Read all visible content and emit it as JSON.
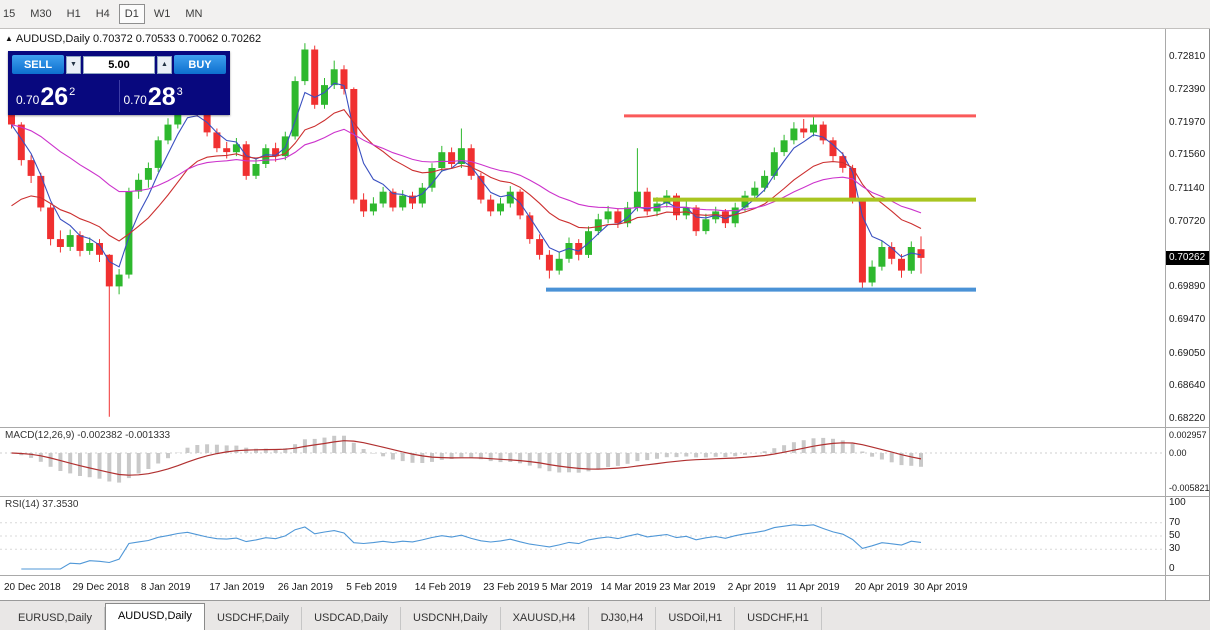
{
  "toolbar": {
    "timeframes": [
      "15",
      "M30",
      "H1",
      "H4",
      "D1",
      "W1",
      "MN"
    ],
    "active": "D1"
  },
  "header": {
    "icon": "▲",
    "symbol": "AUDUSD,Daily",
    "ohlc": "0.70372 0.70533 0.70062 0.70262"
  },
  "trade_panel": {
    "sell_label": "SELL",
    "buy_label": "BUY",
    "volume": "5.00",
    "volume_down_icon": "▼",
    "volume_up_icon": "▲",
    "sell_price": {
      "base": "0.70",
      "pips": "26",
      "point": "2"
    },
    "buy_price": {
      "base": "0.70",
      "pips": "28",
      "point": "3"
    }
  },
  "tab_bar": {
    "tabs": [
      "EURUSD,Daily",
      "AUDUSD,Daily",
      "USDCHF,Daily",
      "USDCAD,Daily",
      "USDCNH,Daily",
      "XAUUSD,H4",
      "DJ30,H4",
      "USDOil,H1",
      "USDCHF,H1"
    ],
    "active": "AUDUSD,Daily"
  },
  "chart_data": {
    "main": {
      "type": "candlestick",
      "symbol": "AUDUSD,Daily",
      "ylim": [
        0.6812,
        0.7316
      ],
      "y_ticks": [
        "0.72810",
        "0.72390",
        "0.71970",
        "0.71560",
        "0.71140",
        "0.70720",
        "0.69890",
        "0.69470",
        "0.69050",
        "0.68640",
        "0.68220"
      ],
      "current_price": "0.70262",
      "colors": {
        "bull": "#2eb82e",
        "bear": "#f03030"
      },
      "x_ticks": [
        {
          "label": "20 Dec 2018",
          "i": 0
        },
        {
          "label": "29 Dec 2018",
          "i": 7
        },
        {
          "label": "8 Jan 2019",
          "i": 14
        },
        {
          "label": "17 Jan 2019",
          "i": 21
        },
        {
          "label": "26 Jan 2019",
          "i": 28
        },
        {
          "label": "5 Feb 2019",
          "i": 35
        },
        {
          "label": "14 Feb 2019",
          "i": 42
        },
        {
          "label": "23 Feb 2019",
          "i": 49
        },
        {
          "label": "5 Mar 2019",
          "i": 55
        },
        {
          "label": "14 Mar 2019",
          "i": 61
        },
        {
          "label": "23 Mar 2019",
          "i": 67
        },
        {
          "label": "2 Apr 2019",
          "i": 74
        },
        {
          "label": "11 Apr 2019",
          "i": 80
        },
        {
          "label": "20 Apr 2019",
          "i": 87
        },
        {
          "label": "30 Apr 2019",
          "i": 93
        }
      ],
      "indicators": [
        {
          "name": "ma-fast-blue",
          "type": "ema",
          "period": 4,
          "seed": null,
          "color": "#3a50c0"
        },
        {
          "name": "ma-mid-red",
          "type": "ema",
          "period": 13,
          "seed": 0.7075,
          "color": "#cc2f2f"
        },
        {
          "name": "ma-slow-magenta",
          "type": "ema",
          "period": 26,
          "seed": 0.7195,
          "color": "#cc33cc"
        }
      ],
      "hlines": [
        {
          "name": "upper-resistance",
          "price": 0.7206,
          "i0": 63,
          "i1": 99,
          "color": "#fa5a5a",
          "width": 3
        },
        {
          "name": "mid-resistance",
          "price": 0.71,
          "i0": 66,
          "i1": 99,
          "color": "#a9c520",
          "width": 4
        },
        {
          "name": "lower-support",
          "price": 0.6986,
          "i0": 55,
          "i1": 99,
          "color": "#4a92d6",
          "width": 4
        }
      ],
      "candles": [
        [
          0.721,
          0.7218,
          0.719,
          0.7195
        ],
        [
          0.7195,
          0.7198,
          0.7143,
          0.715
        ],
        [
          0.715,
          0.7156,
          0.7121,
          0.713
        ],
        [
          0.713,
          0.7134,
          0.7085,
          0.709
        ],
        [
          0.709,
          0.7094,
          0.7042,
          0.705
        ],
        [
          0.705,
          0.7061,
          0.7033,
          0.704
        ],
        [
          0.704,
          0.7062,
          0.7035,
          0.7055
        ],
        [
          0.7055,
          0.706,
          0.7028,
          0.7035
        ],
        [
          0.7035,
          0.7052,
          0.703,
          0.7045
        ],
        [
          0.7045,
          0.705,
          0.7021,
          0.703
        ],
        [
          0.703,
          0.7031,
          0.6825,
          0.699
        ],
        [
          0.699,
          0.7012,
          0.698,
          0.7005
        ],
        [
          0.7005,
          0.7115,
          0.7,
          0.711
        ],
        [
          0.711,
          0.7133,
          0.7101,
          0.7125
        ],
        [
          0.7125,
          0.7147,
          0.7115,
          0.714
        ],
        [
          0.714,
          0.718,
          0.7135,
          0.7175
        ],
        [
          0.7175,
          0.7203,
          0.717,
          0.7195
        ],
        [
          0.7195,
          0.7226,
          0.719,
          0.722
        ],
        [
          0.722,
          0.7239,
          0.7215,
          0.7235
        ],
        [
          0.7235,
          0.7238,
          0.7205,
          0.721
        ],
        [
          0.721,
          0.7215,
          0.718,
          0.7185
        ],
        [
          0.7185,
          0.719,
          0.716,
          0.7165
        ],
        [
          0.7165,
          0.7173,
          0.7152,
          0.716
        ],
        [
          0.716,
          0.7178,
          0.7155,
          0.717
        ],
        [
          0.717,
          0.7174,
          0.7125,
          0.713
        ],
        [
          0.713,
          0.7152,
          0.7126,
          0.7145
        ],
        [
          0.7145,
          0.717,
          0.714,
          0.7165
        ],
        [
          0.7165,
          0.7172,
          0.7148,
          0.7155
        ],
        [
          0.7155,
          0.7186,
          0.715,
          0.718
        ],
        [
          0.718,
          0.7256,
          0.7176,
          0.725
        ],
        [
          0.725,
          0.7298,
          0.7245,
          0.729
        ],
        [
          0.729,
          0.7295,
          0.7215,
          0.722
        ],
        [
          0.722,
          0.7254,
          0.7215,
          0.7245
        ],
        [
          0.7245,
          0.7276,
          0.724,
          0.7265
        ],
        [
          0.7265,
          0.727,
          0.7233,
          0.724
        ],
        [
          0.724,
          0.7242,
          0.7095,
          0.71
        ],
        [
          0.71,
          0.7108,
          0.7078,
          0.7085
        ],
        [
          0.7085,
          0.7103,
          0.708,
          0.7095
        ],
        [
          0.7095,
          0.7116,
          0.709,
          0.711
        ],
        [
          0.711,
          0.7114,
          0.7085,
          0.709
        ],
        [
          0.709,
          0.7112,
          0.7086,
          0.7105
        ],
        [
          0.7105,
          0.711,
          0.7088,
          0.7095
        ],
        [
          0.7095,
          0.7121,
          0.709,
          0.7115
        ],
        [
          0.7115,
          0.7146,
          0.711,
          0.714
        ],
        [
          0.714,
          0.7168,
          0.7135,
          0.716
        ],
        [
          0.716,
          0.7166,
          0.7139,
          0.7145
        ],
        [
          0.7145,
          0.719,
          0.714,
          0.7165
        ],
        [
          0.7165,
          0.717,
          0.7125,
          0.713
        ],
        [
          0.713,
          0.7134,
          0.7095,
          0.71
        ],
        [
          0.71,
          0.7106,
          0.7079,
          0.7085
        ],
        [
          0.7085,
          0.7102,
          0.708,
          0.7095
        ],
        [
          0.7095,
          0.7117,
          0.709,
          0.711
        ],
        [
          0.711,
          0.7113,
          0.7075,
          0.708
        ],
        [
          0.708,
          0.7084,
          0.7044,
          0.705
        ],
        [
          0.705,
          0.7056,
          0.7024,
          0.703
        ],
        [
          0.703,
          0.7036,
          0.7,
          0.701
        ],
        [
          0.701,
          0.7033,
          0.7005,
          0.7025
        ],
        [
          0.7025,
          0.7052,
          0.702,
          0.7045
        ],
        [
          0.7045,
          0.705,
          0.7023,
          0.703
        ],
        [
          0.703,
          0.7066,
          0.7026,
          0.706
        ],
        [
          0.706,
          0.7082,
          0.7055,
          0.7075
        ],
        [
          0.7075,
          0.7092,
          0.707,
          0.7085
        ],
        [
          0.7085,
          0.7089,
          0.7064,
          0.707
        ],
        [
          0.707,
          0.7097,
          0.7065,
          0.709
        ],
        [
          0.709,
          0.7165,
          0.7085,
          0.711
        ],
        [
          0.711,
          0.7115,
          0.708,
          0.7085
        ],
        [
          0.7085,
          0.7103,
          0.7079,
          0.7095
        ],
        [
          0.7095,
          0.7112,
          0.709,
          0.7105
        ],
        [
          0.7105,
          0.7108,
          0.7074,
          0.708
        ],
        [
          0.708,
          0.7098,
          0.7075,
          0.709
        ],
        [
          0.709,
          0.7093,
          0.7054,
          0.706
        ],
        [
          0.706,
          0.7082,
          0.7056,
          0.7075
        ],
        [
          0.7075,
          0.7091,
          0.707,
          0.7085
        ],
        [
          0.7085,
          0.7088,
          0.7064,
          0.707
        ],
        [
          0.707,
          0.7096,
          0.7065,
          0.709
        ],
        [
          0.709,
          0.7111,
          0.7085,
          0.7105
        ],
        [
          0.7105,
          0.7123,
          0.71,
          0.7115
        ],
        [
          0.7115,
          0.7137,
          0.711,
          0.713
        ],
        [
          0.713,
          0.7166,
          0.7125,
          0.716
        ],
        [
          0.716,
          0.7182,
          0.7155,
          0.7175
        ],
        [
          0.7175,
          0.7198,
          0.717,
          0.719
        ],
        [
          0.719,
          0.7202,
          0.7178,
          0.7185
        ],
        [
          0.7185,
          0.7206,
          0.718,
          0.7195
        ],
        [
          0.7195,
          0.7199,
          0.717,
          0.7175
        ],
        [
          0.7175,
          0.7179,
          0.7149,
          0.7155
        ],
        [
          0.7155,
          0.716,
          0.7134,
          0.714
        ],
        [
          0.714,
          0.7144,
          0.7095,
          0.71
        ],
        [
          0.71,
          0.7102,
          0.6988,
          0.6995
        ],
        [
          0.6995,
          0.7023,
          0.699,
          0.7015
        ],
        [
          0.7015,
          0.7048,
          0.701,
          0.704
        ],
        [
          0.704,
          0.7046,
          0.7018,
          0.7025
        ],
        [
          0.7025,
          0.7031,
          0.7001,
          0.701
        ],
        [
          0.701,
          0.7047,
          0.7006,
          0.704
        ],
        [
          0.70372,
          0.70533,
          0.70062,
          0.70262
        ]
      ]
    },
    "macd": {
      "type": "macd_histogram",
      "label": "MACD(12,26,9)",
      "values_text": "-0.002382 -0.001333",
      "params": [
        12,
        26,
        9
      ],
      "ylim": [
        -0.00706,
        0.00411
      ],
      "y_ticks": [
        {
          "v": 0.002957,
          "label": "0.002957"
        },
        {
          "v": 0,
          "label": "0.00"
        },
        {
          "v": -0.005821,
          "label": "-0.005821"
        }
      ],
      "colors": {
        "histogram": "#c9c9c9",
        "signal": "#b03030"
      }
    },
    "rsi": {
      "type": "rsi_line",
      "label_text": "RSI(14) 37.3530",
      "period": 14,
      "ylim": [
        0,
        100
      ],
      "y_ticks": [
        100,
        70,
        50,
        30,
        0
      ],
      "levels": [
        70,
        50,
        30
      ],
      "color": "#4f97d7"
    }
  }
}
